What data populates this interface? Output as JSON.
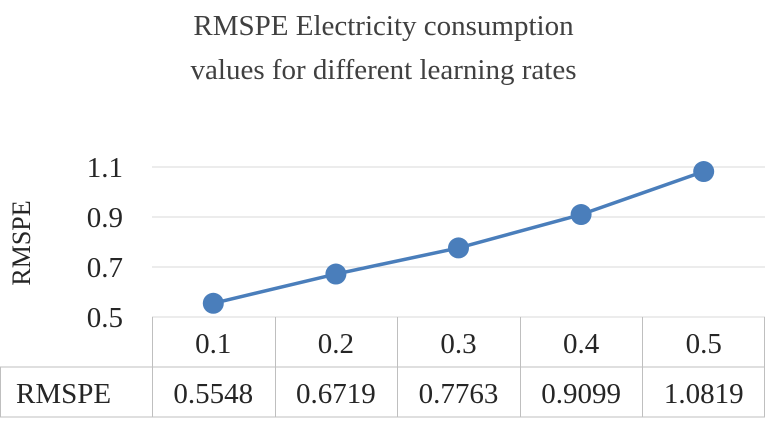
{
  "chart_data": {
    "type": "line",
    "title_lines": [
      "RMSPE Electricity consumption",
      "values for different learning rates"
    ],
    "ylabel": "RMSPE",
    "xlabel": "",
    "categories": [
      "0.1",
      "0.2",
      "0.3",
      "0.4",
      "0.5"
    ],
    "series": [
      {
        "name": "RMSPE",
        "values": [
          0.5548,
          0.6719,
          0.7763,
          0.9099,
          1.0819
        ],
        "value_labels": [
          "0.5548",
          "0.6719",
          "0.7763",
          "0.9099",
          "1.0819"
        ]
      }
    ],
    "ylim": [
      0.5,
      1.1
    ],
    "yticks": [
      "0.5",
      "0.7",
      "0.9",
      "1.1"
    ],
    "grid": true,
    "data_table": true,
    "colors": {
      "series": "#4a7ebb",
      "grid": "#d9d9d9",
      "table_border": "#bfbfbf"
    }
  }
}
